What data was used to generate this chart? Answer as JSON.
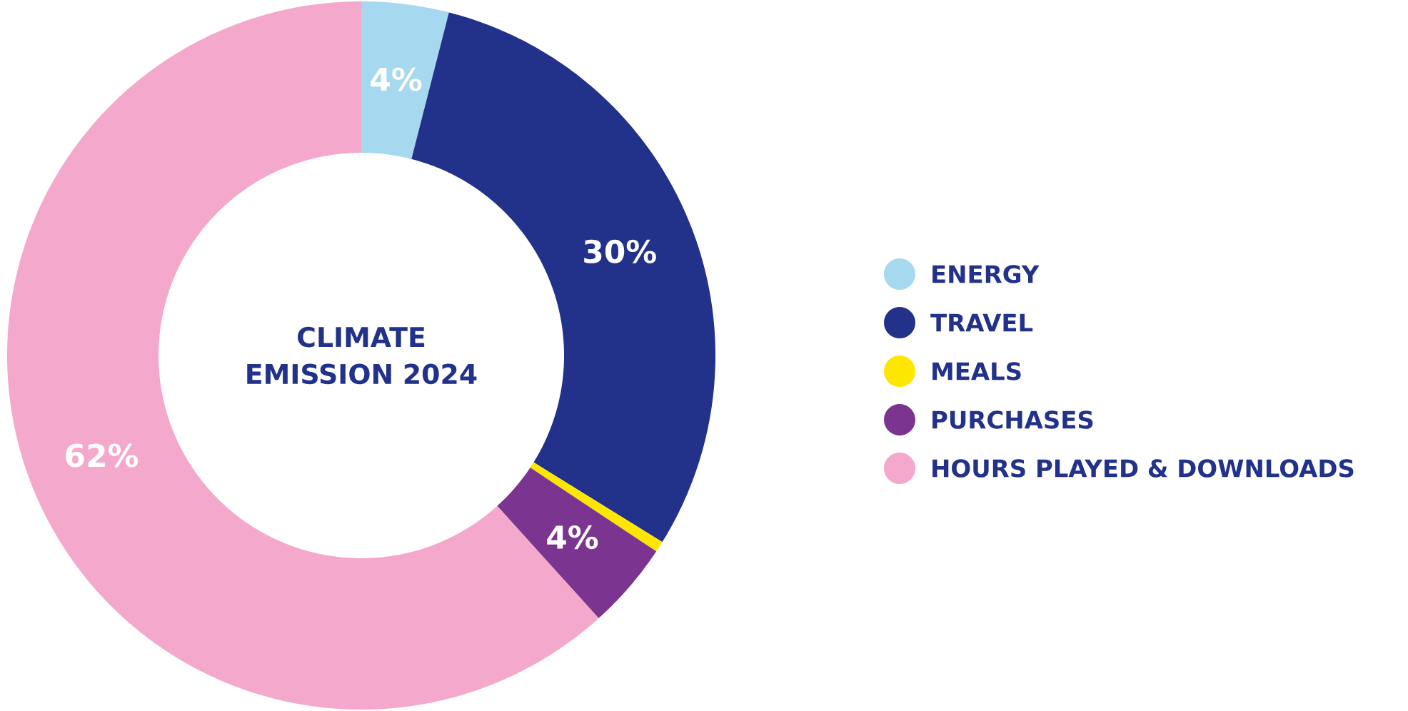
{
  "chart_data": {
    "type": "donut",
    "title": "CLIMATE EMISSION 2024",
    "categories": [
      "ENERGY",
      "TRAVEL",
      "MEALS",
      "PURCHASES",
      "HOURS PLAYED & DOWNLOADS"
    ],
    "values": [
      4,
      30,
      0.5,
      4,
      62
    ],
    "colors": [
      "#a6d8f0",
      "#22318a",
      "#ffe600",
      "#7b3590",
      "#f4a8cb"
    ],
    "value_labels": [
      "4%",
      "30%",
      null,
      "4%",
      "62%"
    ],
    "legend": "right"
  }
}
